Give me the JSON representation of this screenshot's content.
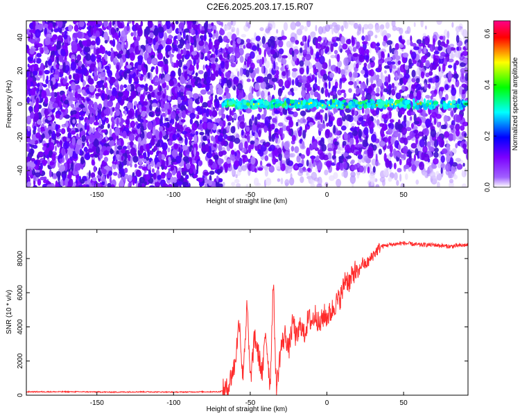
{
  "title": "C2E6.2025.203.17.15.R07",
  "chart_data": [
    {
      "type": "heatmap",
      "xlabel": "Height of straight line (km)",
      "ylabel": "Frequency (Hz)",
      "xlim": [
        -196,
        92
      ],
      "ylim": [
        -50,
        50
      ],
      "xticks": [
        -150,
        -100,
        -50,
        0,
        50
      ],
      "yticks": [
        -40,
        -20,
        0,
        20,
        40
      ],
      "colorbar": {
        "label": "Normalized spectral amplitude",
        "range": [
          0.0,
          0.65
        ],
        "ticks": [
          0.0,
          0.2,
          0.4,
          0.6
        ],
        "colors": [
          "#ffffff",
          "#7b00ff",
          "#0000ff",
          "#00ffff",
          "#00ff00",
          "#ffff00",
          "#ff0000",
          "#ff0088"
        ]
      },
      "regions": [
        {
          "x_range": [
            -196,
            -68
          ],
          "y_range": [
            -50,
            50
          ],
          "level": 0.1
        },
        {
          "x_range": [
            -68,
            92
          ],
          "y_range": [
            -40,
            40
          ],
          "level": 0.08
        },
        {
          "x_range": [
            -68,
            92
          ],
          "y_range": [
            -2,
            2
          ],
          "level": 0.3
        }
      ],
      "grid": false,
      "legend": "colorbar-right"
    },
    {
      "type": "line",
      "xlabel": "Height of straight line (km)",
      "ylabel": "SNR (10 * v/v)",
      "xlim": [
        -196,
        92
      ],
      "ylim": [
        0,
        9700
      ],
      "xticks": [
        -150,
        -100,
        -50,
        0,
        50
      ],
      "yticks": [
        0,
        2000,
        4000,
        6000,
        8000
      ],
      "series": [
        {
          "color": "#ff0000",
          "x": [
            -196,
            -180,
            -160,
            -140,
            -120,
            -100,
            -80,
            -70,
            -65,
            -60,
            -57,
            -55,
            -52,
            -50,
            -47,
            -45,
            -42,
            -40,
            -37,
            -35,
            -33,
            -30,
            -27,
            -25,
            -22,
            -20,
            -17,
            -15,
            -12,
            -10,
            -7,
            -5,
            -2,
            0,
            3,
            5,
            8,
            10,
            12,
            15,
            18,
            20,
            23,
            25,
            28,
            30,
            33,
            35,
            40,
            50,
            60,
            70,
            80,
            92
          ],
          "values": [
            200,
            200,
            200,
            180,
            200,
            180,
            200,
            200,
            350,
            1800,
            4500,
            1000,
            5200,
            800,
            3500,
            2500,
            1200,
            3800,
            500,
            6800,
            300,
            2800,
            3600,
            2600,
            4400,
            3200,
            4200,
            3500,
            4500,
            4300,
            4800,
            4000,
            4700,
            4600,
            4900,
            5300,
            5600,
            6000,
            6900,
            6600,
            7300,
            7000,
            7800,
            7600,
            7900,
            8200,
            8500,
            8700,
            8800,
            8900,
            8800,
            8800,
            8700,
            8800
          ]
        }
      ],
      "grid": false
    }
  ]
}
